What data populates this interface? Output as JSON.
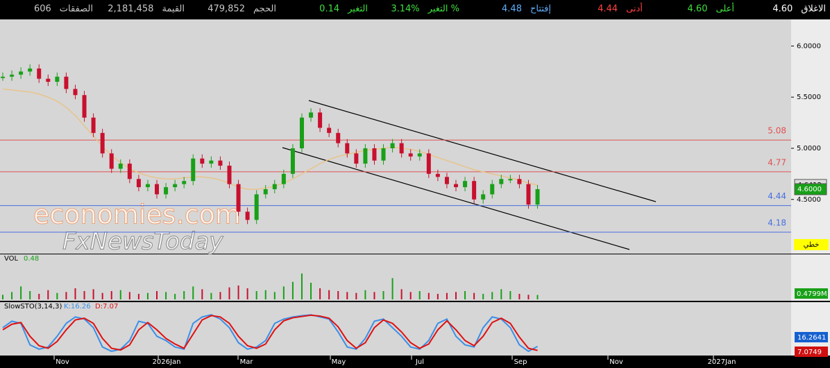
{
  "header": {
    "items": [
      {
        "label": "الاغلاق",
        "value": "4.60",
        "color": "#ffffff"
      },
      {
        "label": "أعلى",
        "value": "4.60",
        "color": "#3fe03f"
      },
      {
        "label": "أدنى",
        "value": "4.44",
        "color": "#ff4040"
      },
      {
        "label": "إفتتاح",
        "value": "4.48",
        "color": "#5fb0ff"
      },
      {
        "label": "التغير %",
        "value": "3.14%",
        "color": "#3fe03f"
      },
      {
        "label": "التغير",
        "value": "0.14",
        "color": "#3fe03f"
      },
      {
        "label": "الحجم",
        "value": "479,852",
        "color": "#c8c8c8"
      },
      {
        "label": "القيمة",
        "value": "2,181,458",
        "color": "#c8c8c8"
      },
      {
        "label": "الصفقات",
        "value": "606",
        "color": "#c8c8c8"
      }
    ]
  },
  "watermark": {
    "line1": "economies.com",
    "line2": "FxNewsToday"
  },
  "chart_data": {
    "type": "candlestick",
    "ylim": [
      3.97,
      6.26
    ],
    "yticks": [
      {
        "value": 6.0,
        "label": "6.0000"
      },
      {
        "value": 5.5,
        "label": "5.5000"
      },
      {
        "value": 5.0,
        "label": "5.0000"
      },
      {
        "value": 4.5,
        "label": "4.5000"
      }
    ],
    "xtick_labels": [
      "Nov",
      "2026Jan",
      "Mar",
      "May",
      "Jul",
      "Sep",
      "Nov",
      "2027Jan"
    ],
    "up_color": "#18a018",
    "down_color": "#c8102e",
    "closes": [
      5.7,
      5.72,
      5.75,
      5.78,
      5.68,
      5.65,
      5.7,
      5.58,
      5.52,
      5.3,
      5.15,
      4.95,
      4.8,
      4.85,
      4.7,
      4.62,
      4.65,
      4.55,
      4.62,
      4.65,
      4.68,
      4.9,
      4.85,
      4.88,
      4.83,
      4.65,
      4.38,
      4.3,
      4.55,
      4.6,
      4.65,
      4.75,
      5.0,
      5.3,
      5.35,
      5.2,
      5.15,
      5.05,
      4.95,
      4.85,
      5.0,
      4.88,
      5.0,
      5.05,
      4.95,
      4.92,
      4.95,
      4.75,
      4.72,
      4.65,
      4.62,
      4.68,
      4.5,
      4.55,
      4.65,
      4.7,
      4.7,
      4.65,
      4.45,
      4.6
    ],
    "ma": {
      "color": "#e8c48a",
      "values": [
        5.58,
        5.57,
        5.56,
        5.55,
        5.53,
        5.5,
        5.46,
        5.4,
        5.32,
        5.22,
        5.12,
        5.02,
        4.93,
        4.86,
        4.8,
        4.76,
        4.73,
        4.71,
        4.7,
        4.7,
        4.71,
        4.72,
        4.72,
        4.71,
        4.69,
        4.66,
        4.62,
        4.6,
        4.6,
        4.61,
        4.63,
        4.66,
        4.7,
        4.75,
        4.8,
        4.85,
        4.89,
        4.92,
        4.94,
        4.96,
        4.98,
        4.99,
        5.0,
        5.01,
        5.0,
        4.99,
        4.97,
        4.94,
        4.91,
        4.88,
        4.85,
        4.82,
        4.79,
        4.77,
        4.75,
        4.73,
        4.71,
        4.69,
        4.66,
        4.64
      ]
    },
    "levels": [
      {
        "value": 5.08,
        "color": "#e05050"
      },
      {
        "value": 4.77,
        "color": "#e05050"
      },
      {
        "value": 4.44,
        "color": "#4a6fe0"
      },
      {
        "value": 4.18,
        "color": "#4a6fe0"
      }
    ],
    "price_tags": [
      {
        "value": 4.6412,
        "label": "4.6412",
        "color": "#dcdcdc"
      },
      {
        "value": 4.6,
        "label": "4.6000",
        "color": "#18a018"
      }
    ],
    "style_badge": "خطي",
    "volume": {
      "title": "VOL",
      "current": "0.48",
      "tag": "0.4799M",
      "ylim": [
        0,
        3.9
      ],
      "values": [
        0.5,
        0.8,
        1.4,
        0.9,
        0.6,
        1.0,
        0.7,
        0.8,
        1.2,
        0.9,
        1.1,
        0.7,
        0.9,
        1.0,
        0.8,
        0.6,
        0.7,
        0.9,
        0.8,
        0.6,
        0.9,
        1.4,
        1.1,
        0.7,
        0.8,
        1.3,
        1.5,
        1.2,
        0.9,
        1.0,
        0.8,
        1.4,
        1.9,
        2.8,
        1.8,
        1.2,
        1.0,
        0.9,
        0.8,
        0.7,
        1.0,
        0.8,
        0.9,
        2.3,
        1.1,
        0.8,
        0.9,
        0.7,
        0.6,
        0.7,
        0.8,
        0.9,
        0.7,
        0.6,
        0.8,
        1.1,
        0.9,
        0.6,
        0.5,
        0.48
      ]
    },
    "stochastic": {
      "title": "SlowSTO(3,14,3)",
      "k_label": "K:16.26",
      "d_label": "D:7.07",
      "ylim": [
        0,
        100
      ],
      "k": {
        "color": "#3a8fe8",
        "values": [
          60,
          75,
          70,
          20,
          10,
          15,
          40,
          70,
          85,
          80,
          60,
          15,
          5,
          10,
          30,
          75,
          70,
          40,
          30,
          15,
          10,
          70,
          85,
          90,
          80,
          60,
          25,
          10,
          15,
          30,
          70,
          80,
          85,
          88,
          90,
          85,
          80,
          50,
          15,
          10,
          35,
          75,
          80,
          60,
          40,
          15,
          10,
          30,
          70,
          80,
          40,
          20,
          15,
          60,
          85,
          80,
          60,
          20,
          5,
          16.26
        ]
      },
      "d": {
        "color": "#e01010",
        "values": [
          55,
          68,
          72,
          40,
          18,
          12,
          28,
          55,
          78,
          82,
          70,
          35,
          12,
          8,
          20,
          55,
          72,
          55,
          35,
          22,
          12,
          45,
          78,
          88,
          85,
          70,
          40,
          18,
          12,
          22,
          55,
          76,
          83,
          86,
          89,
          87,
          82,
          62,
          30,
          12,
          25,
          60,
          78,
          70,
          50,
          25,
          12,
          22,
          55,
          76,
          55,
          30,
          18,
          40,
          72,
          82,
          70,
          38,
          12,
          7.07
        ]
      },
      "tags": [
        {
          "value": 16.2641,
          "color": "#1560d0"
        },
        {
          "value": 7.0749,
          "color": "#d01010"
        }
      ]
    }
  }
}
